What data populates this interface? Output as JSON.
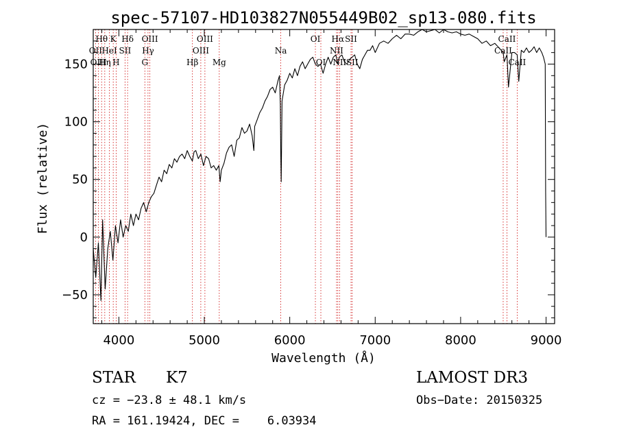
{
  "chart_data": {
    "type": "line",
    "title": "spec-57107-HD103827N055449B02_sp13-080.fits",
    "xlabel": "Wavelength (Å)",
    "ylabel": "Flux (relative)",
    "xlim": [
      3700,
      9100
    ],
    "ylim": [
      -75,
      180
    ],
    "xticks": [
      4000,
      5000,
      6000,
      7000,
      8000,
      9000
    ],
    "yticks": [
      -50,
      0,
      50,
      100,
      150
    ],
    "grid": false,
    "series": [
      {
        "x": [
          3700,
          3730,
          3760,
          3790,
          3810,
          3840,
          3870,
          3900,
          3930,
          3960,
          3990,
          4020,
          4050,
          4080,
          4110,
          4140,
          4170,
          4200,
          4230,
          4260,
          4290,
          4320,
          4350,
          4380,
          4410,
          4440,
          4470,
          4500,
          4530,
          4560,
          4590,
          4620,
          4650,
          4680,
          4710,
          4740,
          4770,
          4800,
          4830,
          4860,
          4880,
          4900,
          4930,
          4960,
          4990,
          5020,
          5050,
          5080,
          5110,
          5140,
          5170,
          5185,
          5200,
          5230,
          5260,
          5290,
          5320,
          5350,
          5380,
          5410,
          5440,
          5470,
          5500,
          5530,
          5560,
          5580,
          5590,
          5620,
          5650,
          5680,
          5710,
          5740,
          5770,
          5800,
          5830,
          5860,
          5880,
          5890,
          5895,
          5900,
          5910,
          5940,
          5970,
          6000,
          6030,
          6060,
          6090,
          6120,
          6150,
          6180,
          6210,
          6240,
          6270,
          6300,
          6330,
          6360,
          6390,
          6420,
          6450,
          6480,
          6510,
          6540,
          6563,
          6580,
          6610,
          6640,
          6670,
          6700,
          6730,
          6760,
          6790,
          6820,
          6850,
          6880,
          6910,
          6940,
          6970,
          7000,
          7050,
          7100,
          7150,
          7200,
          7250,
          7300,
          7350,
          7400,
          7450,
          7500,
          7550,
          7600,
          7650,
          7700,
          7750,
          7800,
          7850,
          7900,
          7950,
          8000,
          8050,
          8100,
          8150,
          8200,
          8250,
          8300,
          8350,
          8400,
          8450,
          8498,
          8510,
          8542,
          8560,
          8600,
          8630,
          8662,
          8680,
          8710,
          8740,
          8770,
          8800,
          8830,
          8860,
          8890,
          8920,
          8950,
          8970,
          8990,
          8995,
          9000
        ],
        "y": [
          -10,
          -35,
          -5,
          -55,
          15,
          -45,
          -10,
          5,
          -20,
          10,
          -5,
          15,
          0,
          10,
          5,
          20,
          10,
          20,
          15,
          25,
          30,
          22,
          30,
          35,
          38,
          45,
          52,
          48,
          58,
          55,
          63,
          60,
          68,
          65,
          70,
          72,
          68,
          75,
          70,
          66,
          74,
          75,
          68,
          72,
          62,
          70,
          68,
          60,
          62,
          58,
          62,
          48,
          58,
          64,
          73,
          78,
          80,
          70,
          84,
          86,
          95,
          90,
          92,
          98,
          88,
          75,
          96,
          102,
          108,
          112,
          118,
          122,
          128,
          130,
          125,
          135,
          140,
          115,
          70,
          48,
          118,
          132,
          136,
          142,
          138,
          146,
          140,
          148,
          152,
          146,
          150,
          154,
          156,
          150,
          148,
          150,
          142,
          150,
          156,
          150,
          156,
          158,
          150,
          156,
          158,
          152,
          150,
          154,
          156,
          158,
          150,
          146,
          154,
          158,
          162,
          162,
          166,
          160,
          168,
          170,
          168,
          172,
          175,
          172,
          176,
          176,
          175,
          178,
          180,
          178,
          179,
          180,
          177,
          180,
          178,
          177,
          178,
          176,
          175,
          176,
          174,
          172,
          168,
          170,
          166,
          168,
          164,
          160,
          152,
          158,
          130,
          160,
          160,
          158,
          135,
          162,
          160,
          164,
          160,
          162,
          165,
          160,
          164,
          160,
          156,
          150,
          40,
          0
        ]
      }
    ],
    "line_labels": [
      {
        "name": "Hθ",
        "wave": 3798,
        "row": 0
      },
      {
        "name": "K",
        "wave": 3934,
        "row": 0
      },
      {
        "name": "Hδ",
        "wave": 4102,
        "row": 0
      },
      {
        "name": "OIII",
        "wave": 4363,
        "row": 0
      },
      {
        "name": "OIII",
        "wave": 5007,
        "row": 0
      },
      {
        "name": "OI",
        "wave": 6300,
        "row": 0
      },
      {
        "name": "Hα",
        "wave": 6563,
        "row": 0
      },
      {
        "name": "SII",
        "wave": 6717,
        "row": 0
      },
      {
        "name": "CaII",
        "wave": 8542,
        "row": 0
      },
      {
        "name": "OII",
        "wave": 3727,
        "row": 1
      },
      {
        "name": "HeI",
        "wave": 3889,
        "row": 1
      },
      {
        "name": "SII",
        "wave": 4072,
        "row": 1
      },
      {
        "name": "Hγ",
        "wave": 4341,
        "row": 1
      },
      {
        "name": "OIII",
        "wave": 4959,
        "row": 1
      },
      {
        "name": "Na",
        "wave": 5895,
        "row": 1
      },
      {
        "name": "NII",
        "wave": 6548,
        "row": 1
      },
      {
        "name": "Hβ",
        "wave": 4861,
        "row": 2
      },
      {
        "name": "CaII",
        "wave": 8498,
        "row": 1
      },
      {
        "name": "OIII",
        "wave": 3761,
        "row": 2
      },
      {
        "name": "Hη",
        "wave": 3835,
        "row": 2
      },
      {
        "name": "H",
        "wave": 3968,
        "row": 2
      },
      {
        "name": "G",
        "wave": 4304,
        "row": 2
      },
      {
        "name": "Mg",
        "wave": 5175,
        "row": 2
      },
      {
        "name": "OI",
        "wave": 6364,
        "row": 2
      },
      {
        "name": "NII",
        "wave": 6583,
        "row": 2
      },
      {
        "name": "SII",
        "wave": 6731,
        "row": 2
      },
      {
        "name": "CaII",
        "wave": 8662,
        "row": 2
      }
    ],
    "marker_lines": [
      3727,
      3761,
      3798,
      3835,
      3889,
      3934,
      3968,
      4072,
      4102,
      4304,
      4341,
      4363,
      4861,
      4959,
      5007,
      5175,
      5895,
      6300,
      6364,
      6548,
      6563,
      6583,
      6717,
      6731,
      8498,
      8542,
      8662
    ],
    "colors": {
      "spectrum": "#000000",
      "lines": "#cc0000",
      "axes": "#000000"
    }
  },
  "info": {
    "class": "STAR",
    "subclass": "K7",
    "survey": "LAMOST DR3",
    "cz": "cz = −23.8 ± 48.1 km/s",
    "obsdate": "Obs−Date: 20150325",
    "radec": "RA = 161.19424, DEC =    6.03934"
  }
}
